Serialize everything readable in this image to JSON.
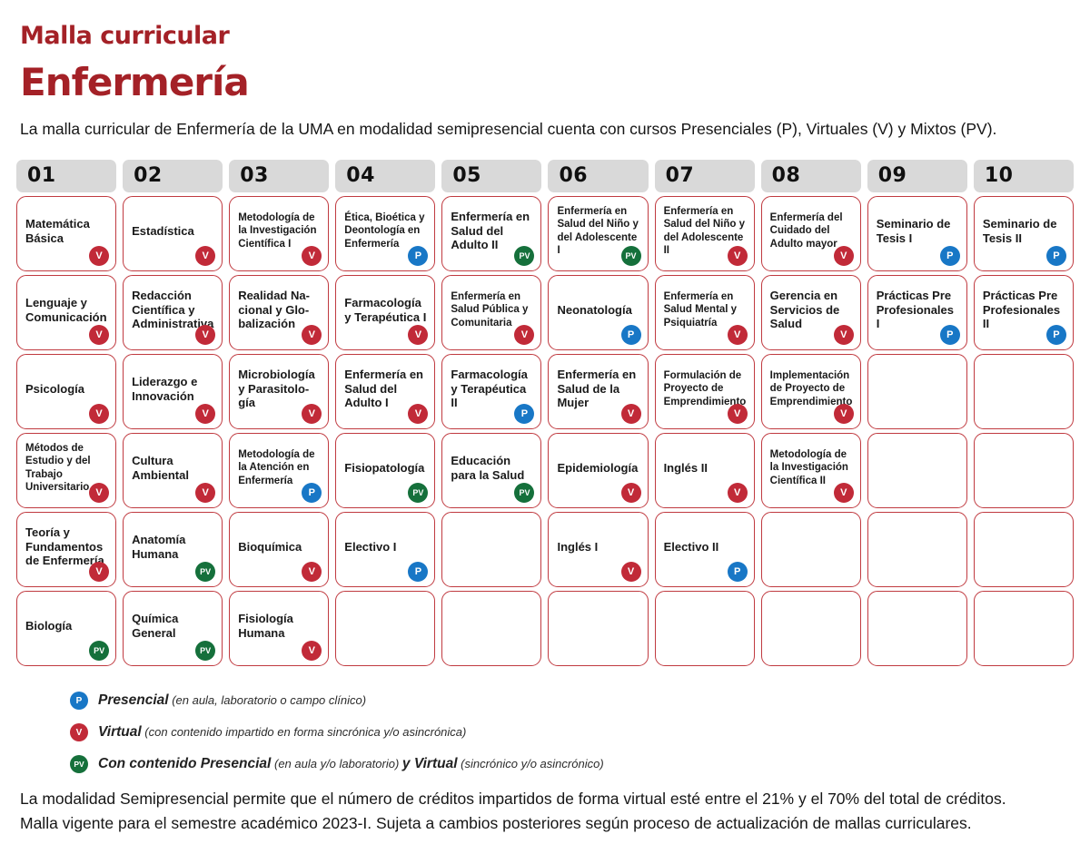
{
  "header": {
    "kicker": "Malla curricular",
    "title": "Enfermería",
    "intro": "La malla curricular de Enfermería de la UMA en modalidad semipresencial cuenta con cursos Presenciales (P), Virtuales (V) y Mixtos (PV)."
  },
  "colors": {
    "brand_red": "#A42127",
    "cell_border": "#C03A40",
    "chip_bg": "#D9D9D9",
    "badge_presencial": "#1877C6",
    "badge_virtual": "#C12A38",
    "badge_mixto": "#15703B"
  },
  "grid": {
    "columns": [
      {
        "label": "01",
        "courses": [
          {
            "name": "Matemática Básica",
            "modality": "V"
          },
          {
            "name": "Lenguaje y Comunicación",
            "modality": "V"
          },
          {
            "name": "Psicología",
            "modality": "V"
          },
          {
            "name": "Métodos de Estudio y del Trabajo Universitario",
            "modality": "V"
          },
          {
            "name": "Teoría y Fundamentos de Enfermería",
            "modality": "V"
          },
          {
            "name": "Biología",
            "modality": "PV"
          }
        ]
      },
      {
        "label": "02",
        "courses": [
          {
            "name": "Estadística",
            "modality": "V"
          },
          {
            "name": "Redacción Científica y Administrativa",
            "modality": "V"
          },
          {
            "name": "Liderazgo e Innovación",
            "modality": "V"
          },
          {
            "name": "Cultura Ambiental",
            "modality": "V"
          },
          {
            "name": "Anatomía Humana",
            "modality": "PV"
          },
          {
            "name": "Química General",
            "modality": "PV"
          }
        ]
      },
      {
        "label": "03",
        "courses": [
          {
            "name": "Metodología de la Investigación Científica I",
            "modality": "V"
          },
          {
            "name": "Realidad Na­cional y Glo­balización",
            "modality": "V"
          },
          {
            "name": "Microbiología y Parasitolo­gía",
            "modality": "V"
          },
          {
            "name": "Metodología de la Atención en Enfermería",
            "modality": "P"
          },
          {
            "name": "Bioquímica",
            "modality": "V"
          },
          {
            "name": "Fisiología Humana",
            "modality": "V"
          }
        ]
      },
      {
        "label": "04",
        "courses": [
          {
            "name": "Ética, Bioética y Deontología en Enfermería",
            "modality": "P"
          },
          {
            "name": "Farmacología y Terapéutica I",
            "modality": "V"
          },
          {
            "name": "Enfermería en Salud del Adulto I",
            "modality": "V"
          },
          {
            "name": "Fisiopatología",
            "modality": "PV"
          },
          {
            "name": "Electivo I",
            "modality": "P"
          },
          null
        ]
      },
      {
        "label": "05",
        "courses": [
          {
            "name": "Enfermería en Salud del Adulto II",
            "modality": "PV"
          },
          {
            "name": "Enfermería en Salud Pública y Comunitaria",
            "modality": "V"
          },
          {
            "name": "Farmacología y Terapéutica II",
            "modality": "P"
          },
          {
            "name": "Educación para la Salud",
            "modality": "PV"
          },
          null,
          null
        ]
      },
      {
        "label": "06",
        "courses": [
          {
            "name": "Enfermería en Salud del Niño y del Adoles­cente I",
            "modality": "PV"
          },
          {
            "name": "Neonatología",
            "modality": "P"
          },
          {
            "name": "Enfermería en Salud de la Mujer",
            "modality": "V"
          },
          {
            "name": "Epidemiología",
            "modality": "V"
          },
          {
            "name": "Inglés I",
            "modality": "V"
          },
          null
        ]
      },
      {
        "label": "07",
        "courses": [
          {
            "name": "Enfermería en Salud del Niño y del Adoles­cente II",
            "modality": "V"
          },
          {
            "name": "Enfermería en Salud Mental y Psiquiatría",
            "modality": "V"
          },
          {
            "name": "Formulación de Proyecto de Emprendimien­to",
            "modality": "V"
          },
          {
            "name": "Inglés II",
            "modality": "V"
          },
          {
            "name": "Electivo II",
            "modality": "P"
          },
          null
        ]
      },
      {
        "label": "08",
        "courses": [
          {
            "name": "Enfermería del Cuidado del Adulto mayor",
            "modality": "V"
          },
          {
            "name": "Gerencia en Servicios de Salud",
            "modality": "V"
          },
          {
            "name": "Implementación de Proyecto de Emprendimiento",
            "modality": "V"
          },
          {
            "name": "Metodología de la Investigación Científica II",
            "modality": "V"
          },
          null,
          null
        ]
      },
      {
        "label": "09",
        "courses": [
          {
            "name": "Seminario de Tesis I",
            "modality": "P"
          },
          {
            "name": "Prácticas Pre Profesionales I",
            "modality": "P"
          },
          null,
          null,
          null,
          null
        ]
      },
      {
        "label": "10",
        "courses": [
          {
            "name": "Seminario de Tesis II",
            "modality": "P"
          },
          {
            "name": "Prácticas Pre Profesionales II",
            "modality": "P"
          },
          null,
          null,
          null,
          null
        ]
      }
    ]
  },
  "legend": {
    "items": [
      {
        "badge": "P",
        "term": "Presencial",
        "note": "(en aula, laboratorio o campo clínico)",
        "term2": "",
        "note2": ""
      },
      {
        "badge": "V",
        "term": "Virtual",
        "note": "(con contenido impartido en forma sincrónica y/o asincrónica)",
        "term2": "",
        "note2": ""
      },
      {
        "badge": "PV",
        "term": "Con contenido Presencial",
        "note": "(en aula y/o laboratorio)",
        "term2": "y Virtual",
        "note2": "(sincrónico y/o asincrónico)"
      }
    ]
  },
  "footer": {
    "line1": "La modalidad Semipresencial permite que el número de créditos impartidos de forma virtual esté entre el 21% y el 70% del total de créditos.",
    "line2": "Malla vigente para el semestre académico 2023-I. Sujeta a cambios posteriores según proceso de actualización de mallas curriculares."
  }
}
